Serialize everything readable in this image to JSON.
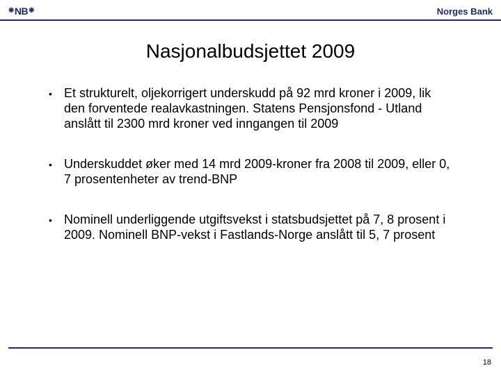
{
  "colors": {
    "accent": "#1a2a6c",
    "text": "#000000",
    "background": "#ffffff"
  },
  "header": {
    "logo_text": "NB",
    "bank_name": "Norges Bank"
  },
  "title": "Nasjonalbudsjettet 2009",
  "bullets": [
    "Et strukturelt, oljekorrigert underskudd på 92 mrd kroner i 2009, lik den forventede realavkastningen. Statens Pensjonsfond - Utland anslått til 2300 mrd kroner ved inngangen til 2009",
    "Underskuddet øker med 14 mrd 2009-kroner fra 2008 til 2009, eller 0, 7 prosentenheter av trend-BNP",
    "Nominell underliggende utgiftsvekst i statsbudsjettet på 7, 8 prosent i 2009. Nominell BNP-vekst i Fastlands-Norge anslått til 5, 7 prosent"
  ],
  "page_number": "18"
}
